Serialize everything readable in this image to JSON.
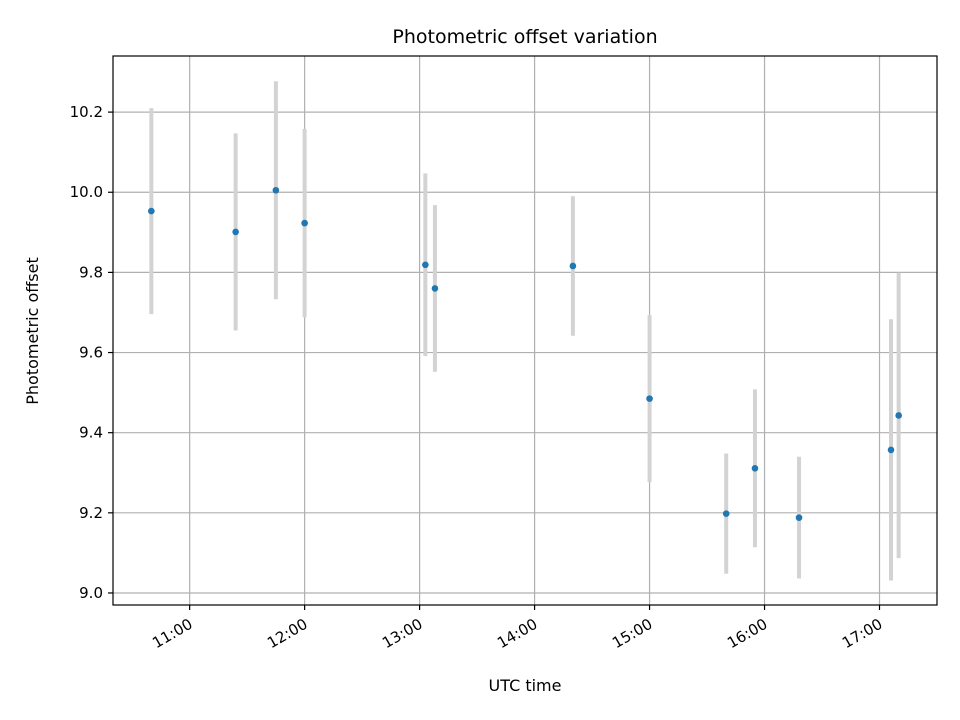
{
  "chart_data": {
    "type": "scatter",
    "title": "Photometric offset variation",
    "xlabel": "UTC time",
    "ylabel": "Photometric offset",
    "grid": true,
    "x_ticks": [
      "11:00",
      "12:00",
      "13:00",
      "14:00",
      "15:00",
      "16:00",
      "17:00"
    ],
    "y_ticks": [
      "9.0",
      "9.2",
      "9.4",
      "9.6",
      "9.8",
      "10.0",
      "10.2"
    ],
    "x_range": [
      "10:20",
      "17:30"
    ],
    "y_range": [
      8.97,
      10.34
    ],
    "colors": {
      "point": "#1f77b4",
      "errorbar": "#d3d3d3",
      "grid": "#b0b0b0"
    },
    "points": [
      {
        "x": "10:40",
        "y": 9.953,
        "err": 0.257
      },
      {
        "x": "11:24",
        "y": 9.901,
        "err": 0.246
      },
      {
        "x": "11:45",
        "y": 10.005,
        "err": 0.272
      },
      {
        "x": "12:00",
        "y": 9.923,
        "err": 0.235
      },
      {
        "x": "13:03",
        "y": 9.819,
        "err": 0.228
      },
      {
        "x": "13:08",
        "y": 9.76,
        "err": 0.208
      },
      {
        "x": "14:20",
        "y": 9.816,
        "err": 0.174
      },
      {
        "x": "15:00",
        "y": 9.485,
        "err": 0.208
      },
      {
        "x": "15:40",
        "y": 9.198,
        "err": 0.15
      },
      {
        "x": "15:55",
        "y": 9.311,
        "err": 0.197
      },
      {
        "x": "16:18",
        "y": 9.188,
        "err": 0.152
      },
      {
        "x": "17:06",
        "y": 9.357,
        "err": 0.326
      },
      {
        "x": "17:10",
        "y": 9.443,
        "err": 0.356
      }
    ]
  }
}
